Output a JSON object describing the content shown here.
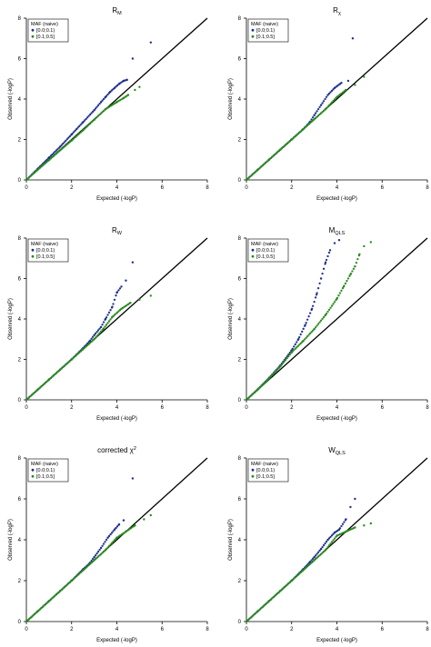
{
  "colors": {
    "series_1": "#1f2f8f",
    "series_2": "#2a8a1e",
    "reference_line": "#000000"
  },
  "chart_data": [
    {
      "type": "scatter",
      "title": "R",
      "title_sub": "M",
      "xlabel": "Expected (-logP)",
      "ylabel": "Observed (-logP)",
      "xlim": [
        0,
        8
      ],
      "ylim": [
        0,
        8
      ],
      "xticks": [
        0,
        2,
        4,
        6,
        8
      ],
      "yticks": [
        0,
        2,
        4,
        6,
        8
      ],
      "reference_line": "y = x",
      "legend": {
        "title": "MAF (naive)",
        "entries": [
          "[0.0;0.1)",
          "[0.1;0.5]"
        ],
        "position": "top-left"
      },
      "series": [
        {
          "name": "[0.0;0.1)",
          "points": [
            [
              0,
              0
            ],
            [
              0.5,
              0.55
            ],
            [
              1,
              1.1
            ],
            [
              1.5,
              1.65
            ],
            [
              2,
              2.25
            ],
            [
              2.5,
              2.85
            ],
            [
              3,
              3.45
            ],
            [
              3.3,
              3.85
            ],
            [
              3.5,
              4.1
            ],
            [
              3.7,
              4.35
            ],
            [
              3.9,
              4.55
            ],
            [
              4.1,
              4.75
            ],
            [
              4.3,
              4.9
            ],
            [
              4.45,
              4.95
            ],
            [
              4.7,
              6.0
            ],
            [
              5.5,
              6.8
            ]
          ]
        },
        {
          "name": "[0.1;0.5]",
          "points": [
            [
              0,
              0
            ],
            [
              0.5,
              0.5
            ],
            [
              1,
              0.98
            ],
            [
              1.5,
              1.47
            ],
            [
              2,
              1.95
            ],
            [
              2.5,
              2.45
            ],
            [
              3,
              2.98
            ],
            [
              3.5,
              3.5
            ],
            [
              4,
              3.85
            ],
            [
              4.3,
              4.05
            ],
            [
              4.5,
              4.2
            ],
            [
              4.8,
              4.45
            ],
            [
              5.0,
              4.6
            ]
          ]
        }
      ]
    },
    {
      "type": "scatter",
      "title": "R",
      "title_sub": "χ",
      "xlabel": "Expected (-logP)",
      "ylabel": "Observed (-logP)",
      "xlim": [
        0,
        8
      ],
      "ylim": [
        0,
        8
      ],
      "xticks": [
        0,
        2,
        4,
        6,
        8
      ],
      "yticks": [
        0,
        2,
        4,
        6,
        8
      ],
      "reference_line": "y = x",
      "legend": {
        "title": "MAF (naive)",
        "entries": [
          "[0.0;0.1)",
          "[0.1;0.5]"
        ],
        "position": "top-left"
      },
      "series": [
        {
          "name": "[0.0;0.1)",
          "points": [
            [
              0,
              0
            ],
            [
              0.5,
              0.5
            ],
            [
              1,
              1.0
            ],
            [
              1.5,
              1.5
            ],
            [
              2,
              2.0
            ],
            [
              2.5,
              2.5
            ],
            [
              2.8,
              2.85
            ],
            [
              3.0,
              3.2
            ],
            [
              3.3,
              3.7
            ],
            [
              3.6,
              4.2
            ],
            [
              3.9,
              4.55
            ],
            [
              4.2,
              4.8
            ],
            [
              4.5,
              4.9
            ],
            [
              4.7,
              7.0
            ]
          ]
        },
        {
          "name": "[0.1;0.5]",
          "points": [
            [
              0,
              0
            ],
            [
              0.5,
              0.5
            ],
            [
              1,
              1.0
            ],
            [
              1.5,
              1.5
            ],
            [
              2,
              2.0
            ],
            [
              2.5,
              2.5
            ],
            [
              3,
              3.0
            ],
            [
              3.5,
              3.5
            ],
            [
              4,
              4.1
            ],
            [
              4.4,
              4.45
            ],
            [
              4.8,
              4.7
            ],
            [
              5.2,
              5.1
            ]
          ]
        }
      ]
    },
    {
      "type": "scatter",
      "title": "R",
      "title_sub": "W",
      "xlabel": "Expected (-logP)",
      "ylabel": "Observed (-logP)",
      "xlim": [
        0,
        8
      ],
      "ylim": [
        0,
        8
      ],
      "xticks": [
        0,
        2,
        4,
        6,
        8
      ],
      "yticks": [
        0,
        2,
        4,
        6,
        8
      ],
      "reference_line": "y = x",
      "legend": {
        "title": "MAF (naive)",
        "entries": [
          "[0.0;0.1)",
          "[0.1;0.5]"
        ],
        "position": "top-left"
      },
      "series": [
        {
          "name": "[0.0;0.1)",
          "points": [
            [
              0,
              0
            ],
            [
              0.5,
              0.5
            ],
            [
              1,
              1.0
            ],
            [
              1.5,
              1.5
            ],
            [
              2,
              2.0
            ],
            [
              2.5,
              2.55
            ],
            [
              2.8,
              2.9
            ],
            [
              3.0,
              3.2
            ],
            [
              3.3,
              3.6
            ],
            [
              3.5,
              4.0
            ],
            [
              3.8,
              4.6
            ],
            [
              4.0,
              5.3
            ],
            [
              4.2,
              5.6
            ],
            [
              4.4,
              5.9
            ],
            [
              4.7,
              6.8
            ]
          ]
        },
        {
          "name": "[0.1;0.5]",
          "points": [
            [
              0,
              0
            ],
            [
              0.5,
              0.5
            ],
            [
              1,
              1.0
            ],
            [
              1.5,
              1.5
            ],
            [
              2,
              2.0
            ],
            [
              2.5,
              2.5
            ],
            [
              3,
              3.0
            ],
            [
              3.4,
              3.5
            ],
            [
              3.8,
              4.1
            ],
            [
              4.2,
              4.5
            ],
            [
              4.6,
              4.8
            ],
            [
              5.0,
              4.95
            ],
            [
              5.5,
              5.15
            ]
          ]
        }
      ]
    },
    {
      "type": "scatter",
      "title": "M",
      "title_sub": "QLS",
      "xlabel": "Expected (-logP)",
      "ylabel": "Observed (-logP)",
      "xlim": [
        0,
        8
      ],
      "ylim": [
        0,
        8
      ],
      "xticks": [
        0,
        2,
        4,
        6,
        8
      ],
      "yticks": [
        0,
        2,
        4,
        6,
        8
      ],
      "reference_line": "y = x",
      "legend": {
        "title": "MAF (naive)",
        "entries": [
          "[0.0;0.1)",
          "[0.1;0.5]"
        ],
        "position": "top-left"
      },
      "series": [
        {
          "name": "[0.0;0.1)",
          "points": [
            [
              0,
              0
            ],
            [
              0.5,
              0.52
            ],
            [
              1,
              1.08
            ],
            [
              1.5,
              1.7
            ],
            [
              2,
              2.45
            ],
            [
              2.3,
              3.0
            ],
            [
              2.6,
              3.7
            ],
            [
              2.9,
              4.5
            ],
            [
              3.1,
              5.2
            ],
            [
              3.3,
              6.0
            ],
            [
              3.5,
              6.8
            ],
            [
              3.7,
              7.4
            ],
            [
              3.9,
              7.75
            ],
            [
              4.1,
              7.9
            ]
          ]
        },
        {
          "name": "[0.1;0.5]",
          "points": [
            [
              0,
              0
            ],
            [
              0.5,
              0.5
            ],
            [
              1,
              1.05
            ],
            [
              1.5,
              1.65
            ],
            [
              2,
              2.35
            ],
            [
              2.5,
              2.9
            ],
            [
              3.0,
              3.5
            ],
            [
              3.5,
              4.2
            ],
            [
              4.0,
              5.0
            ],
            [
              4.3,
              5.6
            ],
            [
              4.6,
              6.2
            ],
            [
              4.8,
              6.6
            ],
            [
              5.0,
              7.2
            ],
            [
              5.2,
              7.6
            ],
            [
              5.5,
              7.8
            ]
          ]
        }
      ]
    },
    {
      "type": "scatter",
      "title": "corrected χ",
      "title_sup": "2",
      "xlabel": "Expected (-logP)",
      "ylabel": "Observed (-logP)",
      "xlim": [
        0,
        8
      ],
      "ylim": [
        0,
        8
      ],
      "xticks": [
        0,
        2,
        4,
        6,
        8
      ],
      "yticks": [
        0,
        2,
        4,
        6,
        8
      ],
      "reference_line": "y = x",
      "legend": {
        "title": "MAF (naive)",
        "entries": [
          "[0.0;0.1)",
          "[0.1;0.5]"
        ],
        "position": "top-left"
      },
      "series": [
        {
          "name": "[0.0;0.1)",
          "points": [
            [
              0,
              0
            ],
            [
              0.5,
              0.5
            ],
            [
              1,
              1.0
            ],
            [
              1.5,
              1.5
            ],
            [
              2,
              2.0
            ],
            [
              2.5,
              2.55
            ],
            [
              2.8,
              2.85
            ],
            [
              3.0,
              3.15
            ],
            [
              3.3,
              3.6
            ],
            [
              3.6,
              4.1
            ],
            [
              3.9,
              4.5
            ],
            [
              4.1,
              4.75
            ],
            [
              4.3,
              4.95
            ],
            [
              4.7,
              7.0
            ]
          ]
        },
        {
          "name": "[0.1;0.5]",
          "points": [
            [
              0,
              0
            ],
            [
              0.5,
              0.5
            ],
            [
              1,
              1.0
            ],
            [
              1.5,
              1.5
            ],
            [
              2,
              2.0
            ],
            [
              2.5,
              2.5
            ],
            [
              3,
              3.0
            ],
            [
              3.5,
              3.5
            ],
            [
              4,
              4.1
            ],
            [
              4.4,
              4.4
            ],
            [
              4.8,
              4.7
            ],
            [
              5.2,
              5.0
            ],
            [
              5.5,
              5.2
            ]
          ]
        }
      ]
    },
    {
      "type": "scatter",
      "title": "W",
      "title_sub": "QLS",
      "xlabel": "Expected (-logP)",
      "ylabel": "Observed (-logP)",
      "xlim": [
        0,
        8
      ],
      "ylim": [
        0,
        8
      ],
      "xticks": [
        0,
        2,
        4,
        6,
        8
      ],
      "yticks": [
        0,
        2,
        4,
        6,
        8
      ],
      "reference_line": "y = x",
      "legend": {
        "title": "MAF (naive)",
        "entries": [
          "[0.0;0.1)",
          "[0.1;0.5]"
        ],
        "position": "top-left"
      },
      "series": [
        {
          "name": "[0.0;0.1)",
          "points": [
            [
              0,
              0
            ],
            [
              0.5,
              0.5
            ],
            [
              1,
              1.0
            ],
            [
              1.5,
              1.5
            ],
            [
              2,
              2.0
            ],
            [
              2.5,
              2.55
            ],
            [
              2.8,
              2.9
            ],
            [
              3.0,
              3.15
            ],
            [
              3.3,
              3.55
            ],
            [
              3.6,
              4.0
            ],
            [
              3.9,
              4.35
            ],
            [
              4.1,
              4.5
            ],
            [
              4.4,
              5.0
            ],
            [
              4.6,
              5.6
            ],
            [
              4.8,
              6.0
            ]
          ]
        },
        {
          "name": "[0.1;0.5]",
          "points": [
            [
              0,
              0
            ],
            [
              0.5,
              0.5
            ],
            [
              1,
              1.0
            ],
            [
              1.5,
              1.5
            ],
            [
              2,
              2.0
            ],
            [
              2.5,
              2.5
            ],
            [
              3,
              3.0
            ],
            [
              3.5,
              3.5
            ],
            [
              4,
              4.2
            ],
            [
              4.4,
              4.4
            ],
            [
              4.8,
              4.6
            ],
            [
              5.2,
              4.7
            ],
            [
              5.5,
              4.8
            ]
          ]
        }
      ]
    }
  ]
}
